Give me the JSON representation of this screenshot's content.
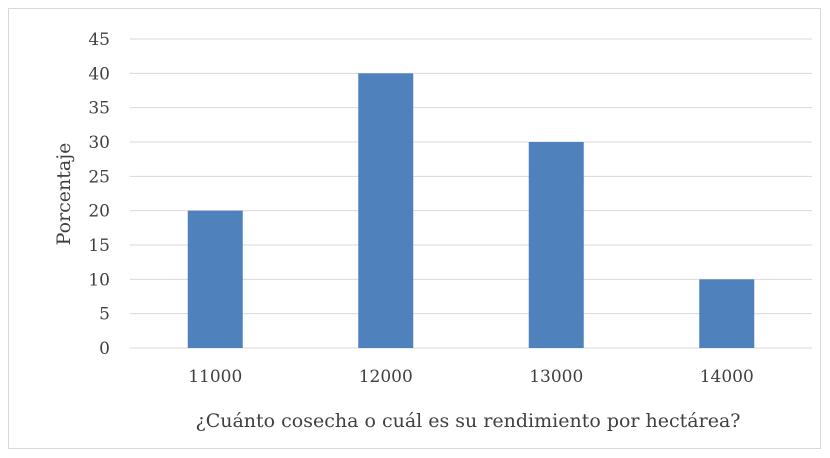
{
  "chart_data": {
    "type": "bar",
    "categories": [
      "11000",
      "12000",
      "13000",
      "14000"
    ],
    "values": [
      20,
      40,
      30,
      10
    ],
    "title": "",
    "xlabel": "¿Cuánto cosecha o cuál es su rendimiento por hectárea?",
    "ylabel": "Porcentaje",
    "ylim": [
      0,
      45
    ],
    "yticks": [
      0,
      5,
      10,
      15,
      20,
      25,
      30,
      35,
      40,
      45
    ],
    "grid": true,
    "legend": "none",
    "bar_color": "#4f81bd",
    "grid_color": "#d9d9d9"
  }
}
